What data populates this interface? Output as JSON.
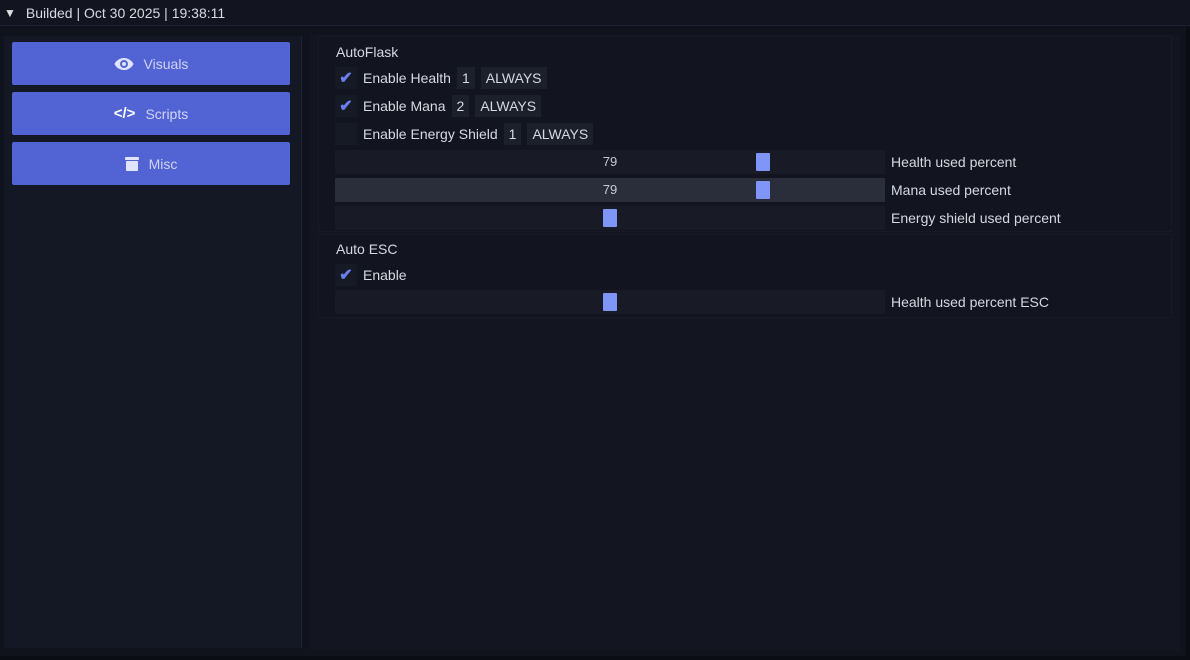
{
  "title": "Builded | Oct 30 2025 | 19:38:11",
  "sidebar": {
    "items": [
      {
        "label": "Visuals",
        "icon": "eye-icon"
      },
      {
        "label": "Scripts",
        "icon": "code-icon"
      },
      {
        "label": "Misc",
        "icon": "box-icon"
      }
    ]
  },
  "autoflask": {
    "header": "AutoFlask",
    "rows": [
      {
        "label": "Enable Health",
        "checked": true,
        "key": "1",
        "mode": "ALWAYS"
      },
      {
        "label": "Enable Mana",
        "checked": true,
        "key": "2",
        "mode": "ALWAYS"
      },
      {
        "label": "Enable Energy Shield",
        "checked": false,
        "key": "1",
        "mode": "ALWAYS"
      }
    ],
    "sliders": [
      {
        "label": "Health used percent",
        "value": 79,
        "display": "79"
      },
      {
        "label": "Mana used percent",
        "value": 79,
        "display": "79"
      },
      {
        "label": "Energy shield used percent",
        "value": 50,
        "display": "50"
      }
    ]
  },
  "autoesc": {
    "header": "Auto ESC",
    "enable": {
      "label": "Enable",
      "checked": true
    },
    "slider": {
      "label": "Health used percent ESC",
      "value": 50,
      "display": "50"
    }
  },
  "colors": {
    "accent": "#5263d3",
    "grab": "#7f95f7"
  }
}
